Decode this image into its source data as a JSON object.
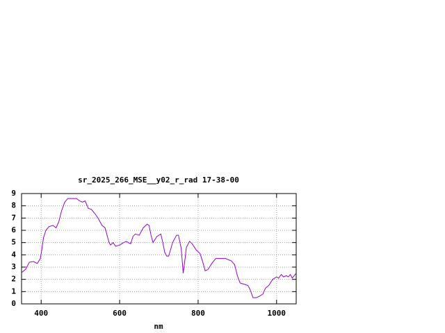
{
  "chart_data": {
    "type": "line",
    "title": "sr_2025_266_MSE__y02_r_rad 17-38-00",
    "x_label": "nm",
    "x": [
      350,
      360,
      370,
      380,
      390,
      398,
      402,
      406,
      412,
      420,
      430,
      438,
      445,
      452,
      460,
      468,
      480,
      490,
      498,
      505,
      512,
      520,
      528,
      536,
      545,
      555,
      563,
      568,
      573,
      577,
      583,
      590,
      600,
      610,
      617,
      622,
      628,
      634,
      640,
      650,
      660,
      670,
      675,
      680,
      685,
      695,
      705,
      710,
      715,
      720,
      725,
      735,
      745,
      750,
      757,
      762,
      766,
      770,
      778,
      785,
      795,
      805,
      812,
      818,
      825,
      835,
      845,
      855,
      870,
      885,
      893,
      900,
      907,
      918,
      927,
      932,
      940,
      948,
      955,
      965,
      972,
      980,
      990,
      1000,
      1005,
      1012,
      1018,
      1025,
      1030,
      1035,
      1040,
      1045,
      1050
    ],
    "series": [
      {
        "color": "#9400d3",
        "values": [
          2.55,
          2.8,
          3.4,
          3.45,
          3.3,
          3.7,
          4.5,
          5.4,
          6.0,
          6.3,
          6.4,
          6.2,
          6.7,
          7.6,
          8.3,
          8.6,
          8.6,
          8.6,
          8.4,
          8.3,
          8.4,
          7.8,
          7.7,
          7.4,
          7.0,
          6.4,
          6.2,
          5.6,
          5.0,
          4.8,
          5.0,
          4.7,
          4.8,
          5.0,
          5.1,
          5.0,
          4.9,
          5.5,
          5.7,
          5.6,
          6.2,
          6.5,
          6.4,
          5.6,
          5.0,
          5.5,
          5.7,
          5.0,
          4.2,
          3.9,
          3.9,
          5.0,
          5.6,
          5.6,
          4.5,
          2.5,
          3.5,
          4.6,
          5.1,
          4.9,
          4.4,
          4.1,
          3.4,
          2.7,
          2.8,
          3.3,
          3.7,
          3.7,
          3.7,
          3.5,
          3.2,
          2.3,
          1.7,
          1.6,
          1.5,
          1.2,
          0.5,
          0.5,
          0.6,
          0.8,
          1.3,
          1.5,
          2.0,
          2.2,
          2.1,
          2.4,
          2.2,
          2.3,
          2.2,
          2.4,
          2.1,
          2.3,
          2.5
        ]
      }
    ],
    "xlim": [
      350,
      1050
    ],
    "xticks": [
      400,
      600,
      800,
      1000
    ],
    "ylim": [
      0,
      9
    ],
    "yticks": [
      0,
      1,
      2,
      3,
      4,
      5,
      6,
      7,
      8,
      9
    ],
    "grid": true
  }
}
